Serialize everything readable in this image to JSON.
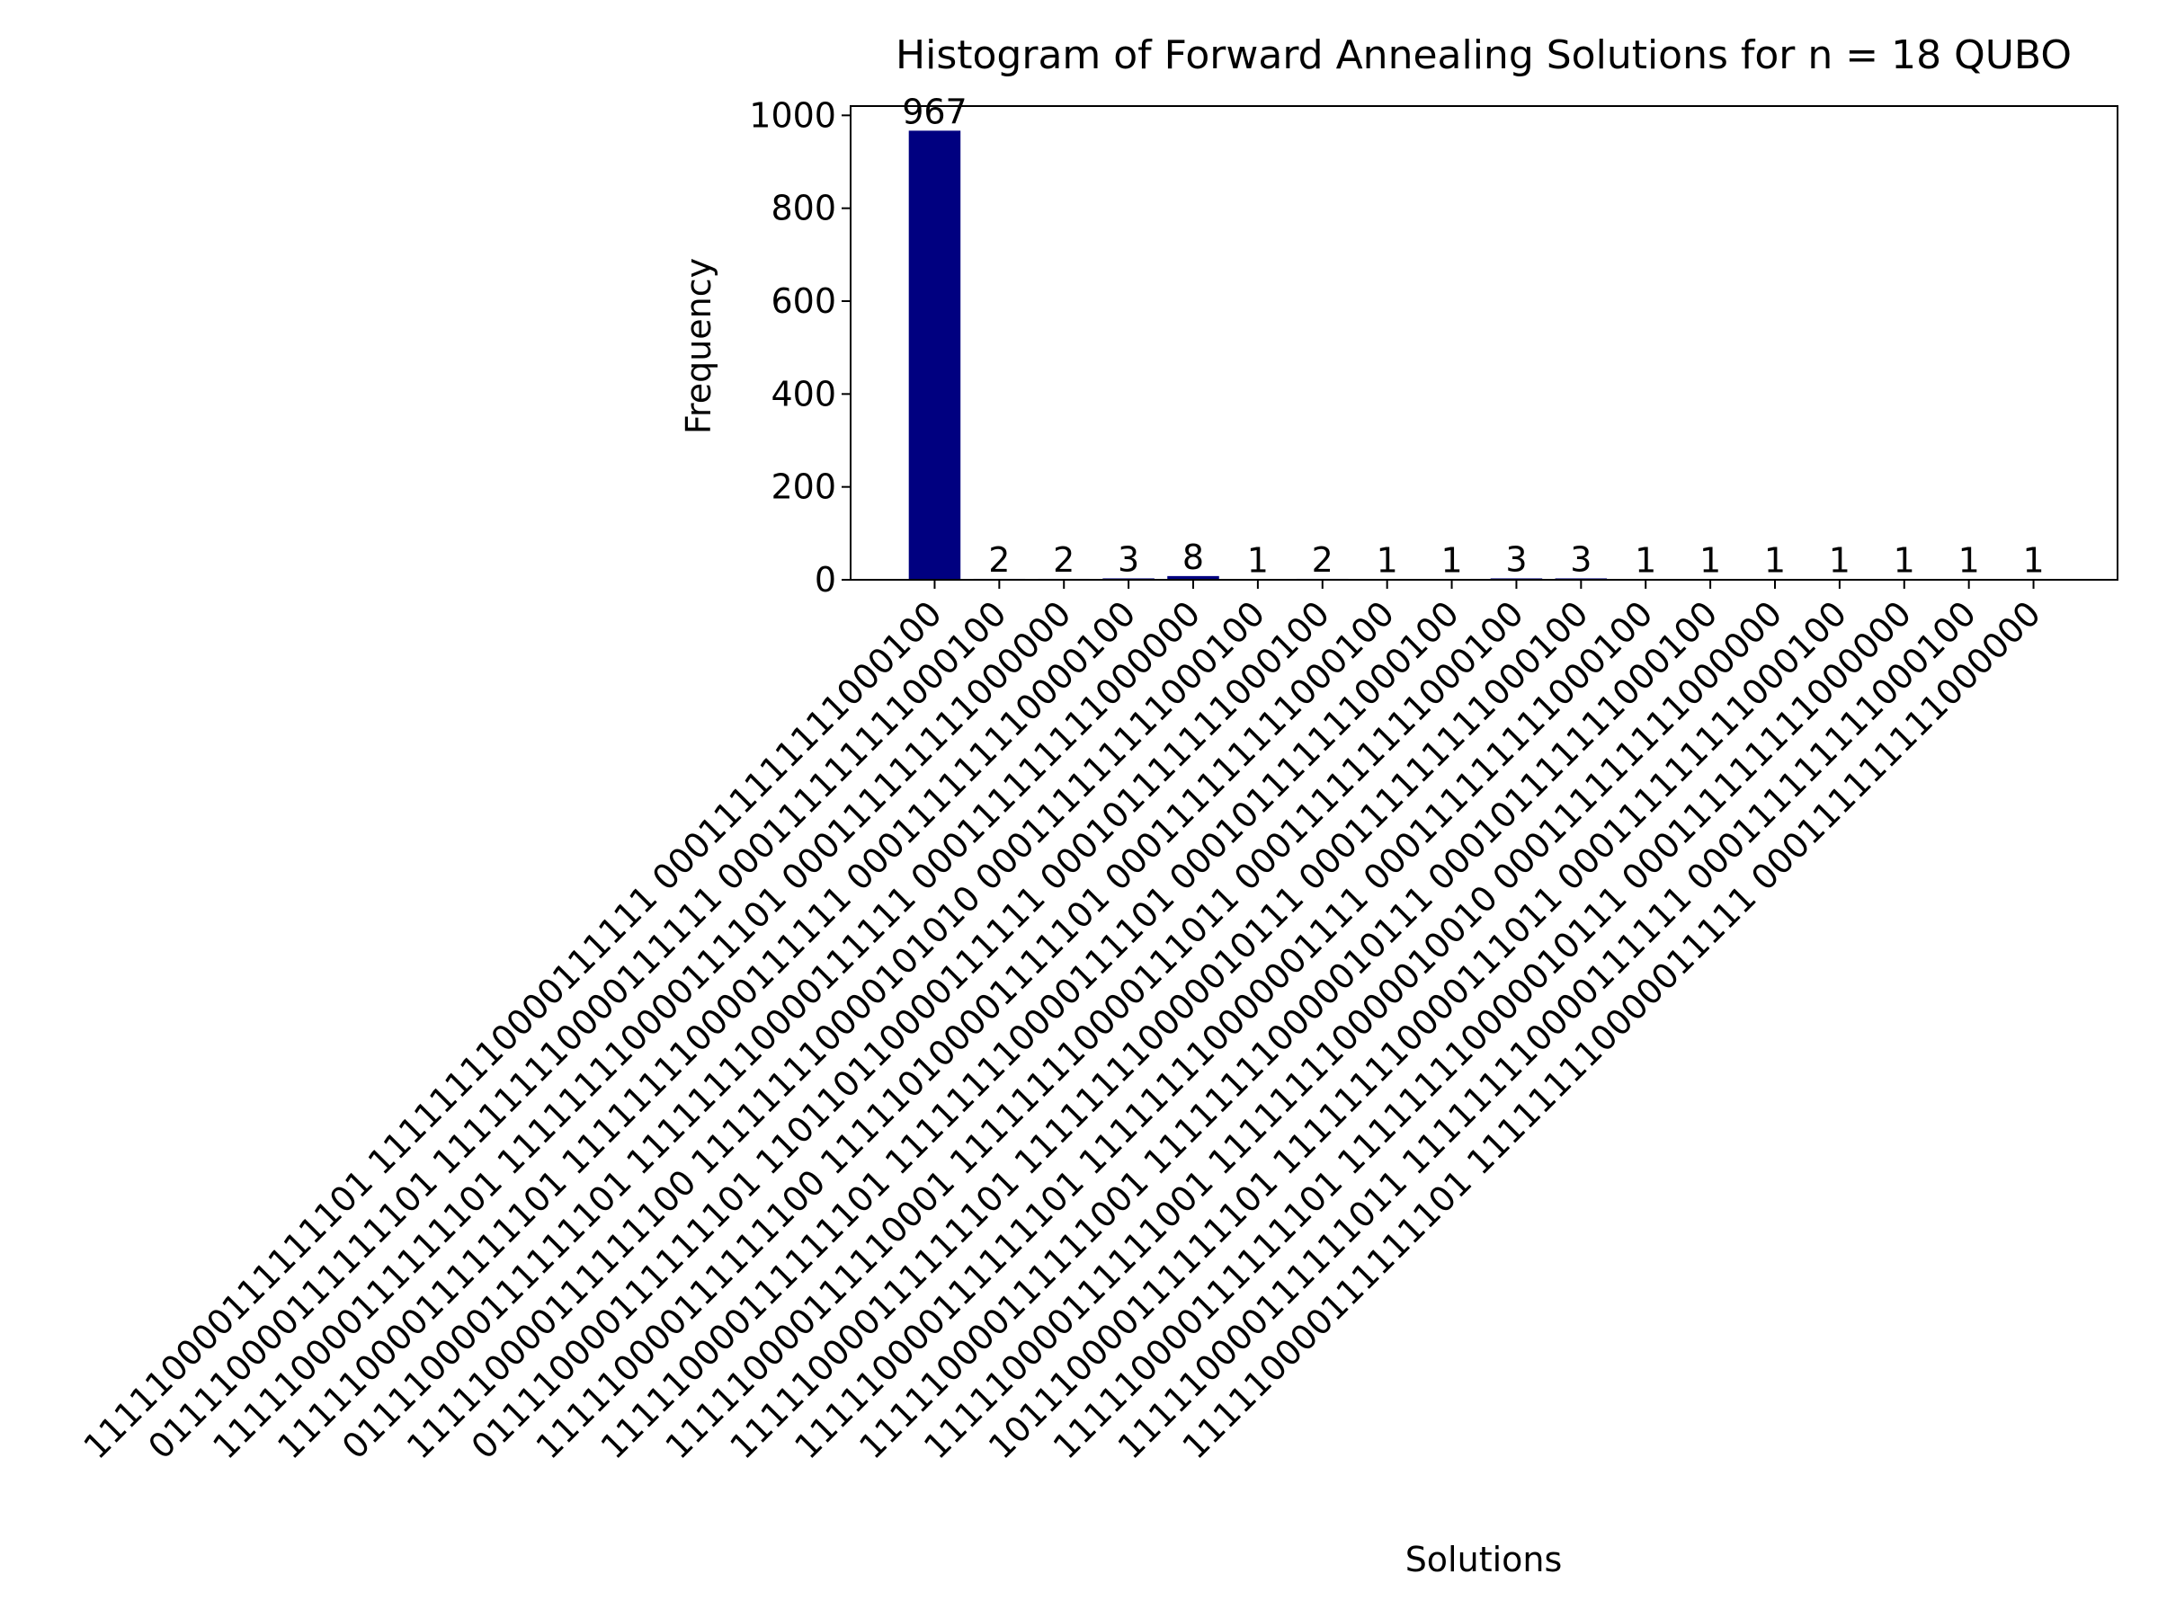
{
  "chart_data": {
    "type": "bar",
    "title": "Histogram of Forward Annealing Solutions for n = 18 QUBO",
    "xlabel": "Solutions",
    "ylabel": "Frequency",
    "categories": [
      "111110000111111101 111111110000111111 000111111111000100",
      "011110000111111101 111111110000111111 000111111111000100",
      "111110000111111101 111111110000111101 000111111111000000",
      "111110000111111101 111111110000111111 000111111110000100",
      "011110000111111101 111111110000111111 000111111111000000",
      "111110000111111100 111111110000101010 000111111111000100",
      "011110000111111101 110110110000111111 000101111111000100",
      "111110000111111100 111110100001111101 000111111111000100",
      "111110000111111101 111111110000111101 000101111111000100",
      "111110000111110001 111111110000111011 000111111111000100",
      "111110000111111101 111111110000010111 000111111111000100",
      "111110000111111101 111111110000001111 000111111111000100",
      "111110000111111001 111111110000010111 000101111111000100",
      "111110000111111001 111111110000010010 000111111111000000",
      "101110000111111101 111111110000111011 000111111111000100",
      "111110000111111101 111111110000010111 000111111111000000",
      "111110000111111011 111111110000111111 000111111111000100",
      "111110000111111101 111111110000011111 000111111111000000"
    ],
    "values": [
      967,
      2,
      2,
      3,
      8,
      1,
      2,
      1,
      1,
      3,
      3,
      1,
      1,
      1,
      1,
      1,
      1,
      1
    ],
    "color": "#000080",
    "ylim": [
      0,
      1020
    ],
    "yticks": [
      0,
      200,
      400,
      600,
      800,
      1000
    ]
  }
}
